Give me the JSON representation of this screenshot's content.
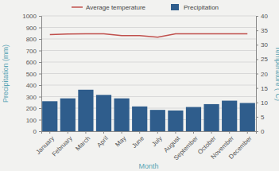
{
  "chart_data": {
    "type": "bar",
    "x_label": "Month",
    "y_label": "Precipitation (mm)",
    "y2_label": "Temperature (°C)",
    "categories": [
      "January",
      "February",
      "March",
      "April",
      "May",
      "June",
      "July",
      "August",
      "September",
      "October",
      "November",
      "December"
    ],
    "series": [
      {
        "name": "Average temperature",
        "type": "line",
        "color": "#c0504d",
        "axis": "y2",
        "values": [
          33.5,
          33.7,
          33.8,
          33.8,
          33.2,
          33.2,
          32.6,
          33.8,
          33.8,
          33.8,
          33.8,
          33.8
        ]
      },
      {
        "name": "Precipitation",
        "type": "bar",
        "color": "#2f5d8c",
        "values": [
          260,
          285,
          360,
          315,
          285,
          215,
          185,
          180,
          210,
          235,
          265,
          245
        ]
      }
    ],
    "ylim": [
      0,
      1000
    ],
    "yticks": [
      0,
      100,
      200,
      300,
      400,
      500,
      600,
      700,
      800,
      900,
      1000
    ],
    "y2lim": [
      0,
      40
    ],
    "y2ticks": [
      0,
      5,
      10,
      15,
      20,
      25,
      30,
      35,
      40
    ],
    "grid": true,
    "legend": "top"
  }
}
